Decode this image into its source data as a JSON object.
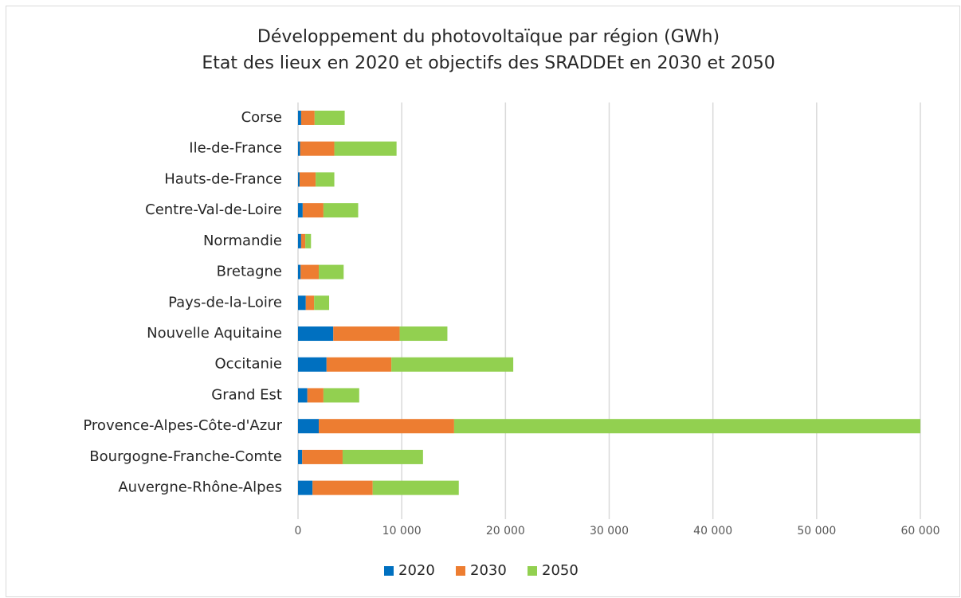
{
  "chart_data": {
    "type": "stacked_barh",
    "title": "Développement du photovoltaïque par région (GWh)",
    "subtitle": "Etat des lieux en 2020 et objectifs des SRADDEt en 2030 et 2050",
    "categories": [
      "Corse",
      "Ile-de-France",
      "Hauts-de-France",
      "Centre-Val-de-Loire",
      "Normandie",
      "Bretagne",
      "Pays-de-la-Loire",
      "Nouvelle Aquitaine",
      "Occitanie",
      "Grand Est",
      "Provence-Alpes-Côte-d'Azur",
      "Bourgogne-Franche-Comte",
      "Auvergne-Rhône-Alpes"
    ],
    "series": [
      {
        "name": "2020",
        "color": "#0070c0",
        "values": [
          300,
          200,
          150,
          450,
          300,
          250,
          750,
          3400,
          2750,
          900,
          2000,
          400,
          1400
        ]
      },
      {
        "name": "2030",
        "color": "#ed7d31",
        "values": [
          1300,
          3300,
          1550,
          2000,
          400,
          1750,
          800,
          6400,
          6250,
          1550,
          13050,
          3900,
          5800
        ]
      },
      {
        "name": "2050",
        "color": "#92d050",
        "values": [
          2900,
          6000,
          1800,
          3350,
          550,
          2400,
          1450,
          4600,
          11750,
          3450,
          44950,
          7750,
          8300
        ]
      }
    ],
    "xlim": [
      0,
      60000
    ],
    "xticks": [
      0,
      {
        "value": 10000,
        "label": "10 000"
      },
      {
        "value": 20000,
        "label": "20 000"
      },
      {
        "value": 30000,
        "label": "30 000"
      },
      {
        "value": 40000,
        "label": "40 000"
      },
      {
        "value": 50000,
        "label": "50 000"
      },
      {
        "value": 60000,
        "label": "60 000"
      }
    ],
    "grid": true,
    "legend": "bottom"
  }
}
